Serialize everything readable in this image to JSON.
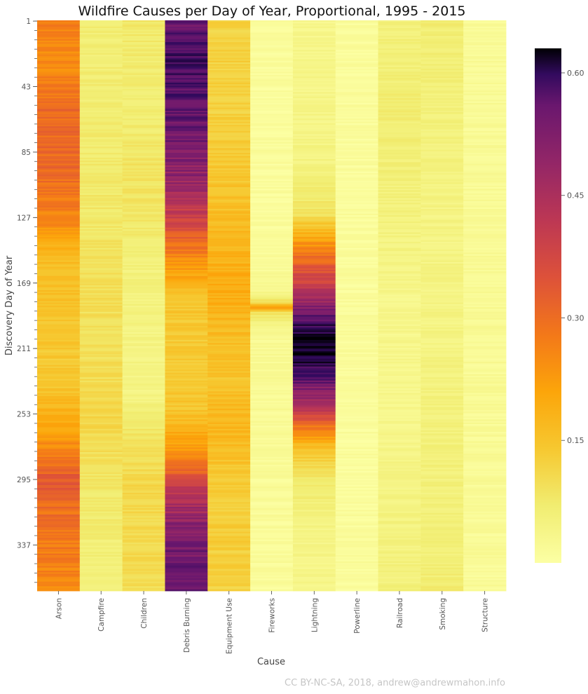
{
  "chart_data": {
    "type": "heatmap",
    "title": "Wildfire Causes per Day of Year, Proportional, 1995 - 2015",
    "xlabel": "Cause",
    "ylabel": "Discovery Day of Year",
    "categories": [
      "Arson",
      "Campfire",
      "Children",
      "Debris Burning",
      "Equipment Use",
      "Fireworks",
      "Lightning",
      "Powerline",
      "Railroad",
      "Smoking",
      "Structure"
    ],
    "y_range": [
      1,
      366
    ],
    "y_ticks": [
      "1",
      "43",
      "85",
      "127",
      "169",
      "211",
      "253",
      "295",
      "337"
    ],
    "colormap": "inferno_r",
    "colorbar": {
      "min": 0.0,
      "max": 0.63,
      "ticks": [
        "0.15",
        "0.30",
        "0.45",
        "0.60"
      ]
    },
    "profiles": {
      "Arson": {
        "days": [
          1,
          30,
          60,
          100,
          130,
          150,
          170,
          200,
          230,
          260,
          295,
          320,
          366
        ],
        "values": [
          0.24,
          0.22,
          0.28,
          0.27,
          0.23,
          0.15,
          0.14,
          0.13,
          0.12,
          0.18,
          0.3,
          0.26,
          0.23
        ]
      },
      "Campfire": {
        "days": [
          1,
          60,
          120,
          180,
          200,
          230,
          260,
          300,
          366
        ],
        "values": [
          0.06,
          0.06,
          0.07,
          0.09,
          0.08,
          0.09,
          0.1,
          0.07,
          0.05
        ]
      },
      "Children": {
        "days": [
          1,
          60,
          100,
          130,
          160,
          200,
          240,
          270,
          300,
          366
        ],
        "values": [
          0.07,
          0.06,
          0.08,
          0.07,
          0.05,
          0.04,
          0.04,
          0.08,
          0.1,
          0.09
        ]
      },
      "Debris Burning": {
        "days": [
          1,
          25,
          60,
          100,
          130,
          155,
          180,
          210,
          250,
          280,
          300,
          330,
          366
        ],
        "values": [
          0.5,
          0.55,
          0.52,
          0.45,
          0.34,
          0.22,
          0.13,
          0.12,
          0.13,
          0.22,
          0.36,
          0.48,
          0.5
        ]
      },
      "Equipment Use": {
        "days": [
          1,
          60,
          120,
          150,
          170,
          200,
          230,
          260,
          300,
          366
        ],
        "values": [
          0.11,
          0.11,
          0.14,
          0.16,
          0.18,
          0.15,
          0.13,
          0.16,
          0.12,
          0.11
        ]
      },
      "Fireworks": {
        "days": [
          1,
          150,
          175,
          182,
          185,
          188,
          200,
          366
        ],
        "values": [
          0.01,
          0.01,
          0.03,
          0.1,
          0.22,
          0.08,
          0.02,
          0.01
        ]
      },
      "Lightning": {
        "days": [
          1,
          90,
          110,
          125,
          135,
          150,
          165,
          180,
          195,
          205,
          215,
          225,
          240,
          255,
          265,
          275,
          290,
          320,
          366
        ],
        "values": [
          0.03,
          0.04,
          0.06,
          0.08,
          0.15,
          0.25,
          0.33,
          0.42,
          0.55,
          0.62,
          0.6,
          0.55,
          0.45,
          0.32,
          0.22,
          0.14,
          0.08,
          0.04,
          0.03
        ]
      },
      "Powerline": {
        "days": [
          1,
          180,
          366
        ],
        "values": [
          0.01,
          0.01,
          0.01
        ]
      },
      "Railroad": {
        "days": [
          1,
          60,
          120,
          180,
          250,
          300,
          366
        ],
        "values": [
          0.05,
          0.06,
          0.05,
          0.03,
          0.03,
          0.04,
          0.05
        ]
      },
      "Smoking": {
        "days": [
          1,
          60,
          120,
          200,
          260,
          320,
          366
        ],
        "values": [
          0.06,
          0.05,
          0.04,
          0.04,
          0.05,
          0.05,
          0.06
        ]
      },
      "Structure": {
        "days": [
          1,
          180,
          366
        ],
        "values": [
          0.015,
          0.02,
          0.015
        ]
      }
    }
  },
  "footer": {
    "credit": "CC BY-NC-SA, 2018, andrew@andrewmahon.info"
  }
}
